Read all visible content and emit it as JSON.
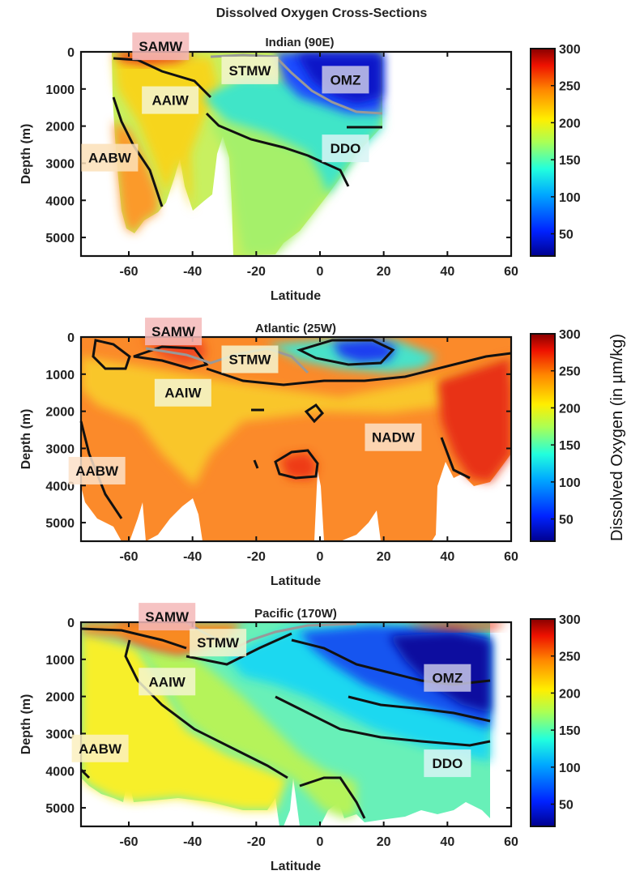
{
  "figure": {
    "title": "Dissolved Oxygen Cross-Sections",
    "colorbar_label": "Dissolved Oxygen (in µm/kg)",
    "colorbar_ticks": [
      300,
      250,
      200,
      150,
      100,
      50
    ]
  },
  "chart_data": [
    {
      "type": "heatmap",
      "title": "Indian (90E)",
      "xlabel": "Latitude",
      "ylabel": "Depth (m)",
      "xlim": [
        -75,
        60
      ],
      "ylim": [
        0,
        5500
      ],
      "xticks": [
        -60,
        -40,
        -20,
        0,
        20,
        40,
        60
      ],
      "yticks": [
        0,
        1000,
        2000,
        3000,
        4000,
        5000
      ],
      "data_lat_range": [
        -66,
        20
      ],
      "labels": [
        {
          "text": "SAMW",
          "lat": -50,
          "depth": -150,
          "bg": "#f4b8b8"
        },
        {
          "text": "STMW",
          "lat": -22,
          "depth": 500,
          "bg": "#f5f5d0"
        },
        {
          "text": "OMZ",
          "lat": 8,
          "depth": 750,
          "bg": "#c8c8e8"
        },
        {
          "text": "AAIW",
          "lat": -47,
          "depth": 1300,
          "bg": "#f5f5d0"
        },
        {
          "text": "DDO",
          "lat": 8,
          "depth": 2600,
          "bg": "#d8f5f5"
        },
        {
          "text": "AABW",
          "lat": -66,
          "depth": 2850,
          "bg": "#fce0b8"
        }
      ]
    },
    {
      "type": "heatmap",
      "title": "Atlantic (25W)",
      "xlabel": "Latitude",
      "ylabel": "Depth (m)",
      "xlim": [
        -75,
        60
      ],
      "ylim": [
        0,
        5500
      ],
      "xticks": [
        -60,
        -40,
        -20,
        0,
        20,
        40,
        60
      ],
      "yticks": [
        0,
        1000,
        2000,
        3000,
        4000,
        5000
      ],
      "data_lat_range": [
        -75,
        60
      ],
      "labels": [
        {
          "text": "SAMW",
          "lat": -46,
          "depth": -150,
          "bg": "#f4b8b8"
        },
        {
          "text": "STMW",
          "lat": -22,
          "depth": 600,
          "bg": "#f5f5d0"
        },
        {
          "text": "AAIW",
          "lat": -43,
          "depth": 1500,
          "bg": "#f5f5d0"
        },
        {
          "text": "NADW",
          "lat": 23,
          "depth": 2700,
          "bg": "#fce0c8"
        },
        {
          "text": "AABW",
          "lat": -70,
          "depth": 3600,
          "bg": "#fce0c8"
        }
      ]
    },
    {
      "type": "heatmap",
      "title": "Pacific (170W)",
      "xlabel": "Latitude",
      "ylabel": "Depth (m)",
      "xlim": [
        -75,
        60
      ],
      "ylim": [
        0,
        5500
      ],
      "xticks": [
        -60,
        -40,
        -20,
        0,
        20,
        40,
        60
      ],
      "yticks": [
        0,
        1000,
        2000,
        3000,
        4000,
        5000
      ],
      "data_lat_range": [
        -75,
        53
      ],
      "labels": [
        {
          "text": "SAMW",
          "lat": -48,
          "depth": -150,
          "bg": "#f4b8b8"
        },
        {
          "text": "STMW",
          "lat": -32,
          "depth": 550,
          "bg": "#f5f5d0"
        },
        {
          "text": "OMZ",
          "lat": 40,
          "depth": 1500,
          "bg": "#c8c8e8"
        },
        {
          "text": "AAIW",
          "lat": -48,
          "depth": 1600,
          "bg": "#f5f5d0"
        },
        {
          "text": "DDO",
          "lat": 40,
          "depth": 3800,
          "bg": "#d8f5f5"
        },
        {
          "text": "AABW",
          "lat": -69,
          "depth": 3400,
          "bg": "#fcf0c0"
        }
      ]
    }
  ]
}
